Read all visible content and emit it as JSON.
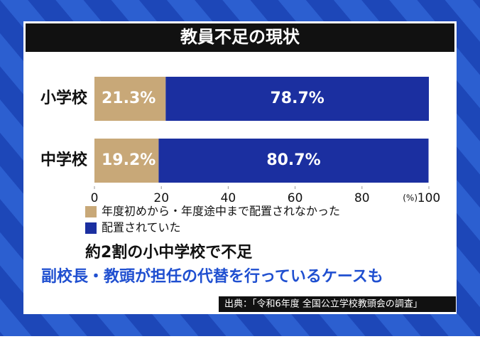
{
  "chart_data": {
    "type": "stacked-bar-horizontal",
    "title": "教員不足の現状",
    "categories": [
      "小学校",
      "中学校"
    ],
    "series": [
      {
        "name": "年度初めから・年度途中まで配置されなかった",
        "color": "#c8a878",
        "values": [
          21.3,
          19.2
        ],
        "value_labels": [
          "21.3%",
          "19.2%"
        ]
      },
      {
        "name": "配置されていた",
        "color": "#1b2fa0",
        "values": [
          78.7,
          80.7
        ],
        "value_labels": [
          "78.7%",
          "80.7%"
        ]
      }
    ],
    "xlim": [
      0,
      100
    ],
    "xticks": [
      0,
      20,
      40,
      60,
      80,
      100
    ],
    "x_unit": "(%)",
    "headline": "約2割の小中学校で不足",
    "subheadline": "副校長・教頭が担任の代替を行っているケースも",
    "source": "出典：「令和6年度 全国公立学校教頭会の調査」"
  }
}
